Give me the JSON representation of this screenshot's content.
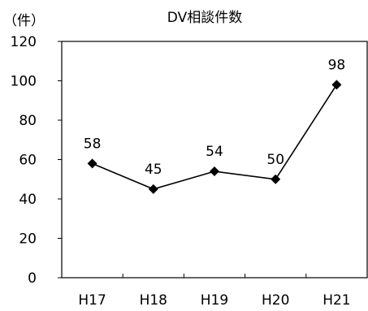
{
  "chart_data": {
    "type": "line",
    "title": "DV相談件数",
    "unit_label": "（件）",
    "categories": [
      "H17",
      "H18",
      "H19",
      "H20",
      "H21"
    ],
    "series": [
      {
        "values": [
          58,
          45,
          54,
          50,
          98
        ]
      }
    ],
    "data_labels": [
      "58",
      "45",
      "54",
      "50",
      "98"
    ],
    "yticks": [
      "0",
      "20",
      "40",
      "60",
      "80",
      "100",
      "120"
    ],
    "ylim": [
      0,
      120
    ],
    "grid": false,
    "marker": "diamond",
    "colors": {
      "line": "#000000",
      "marker": "#000000",
      "axis": "#000000"
    }
  }
}
